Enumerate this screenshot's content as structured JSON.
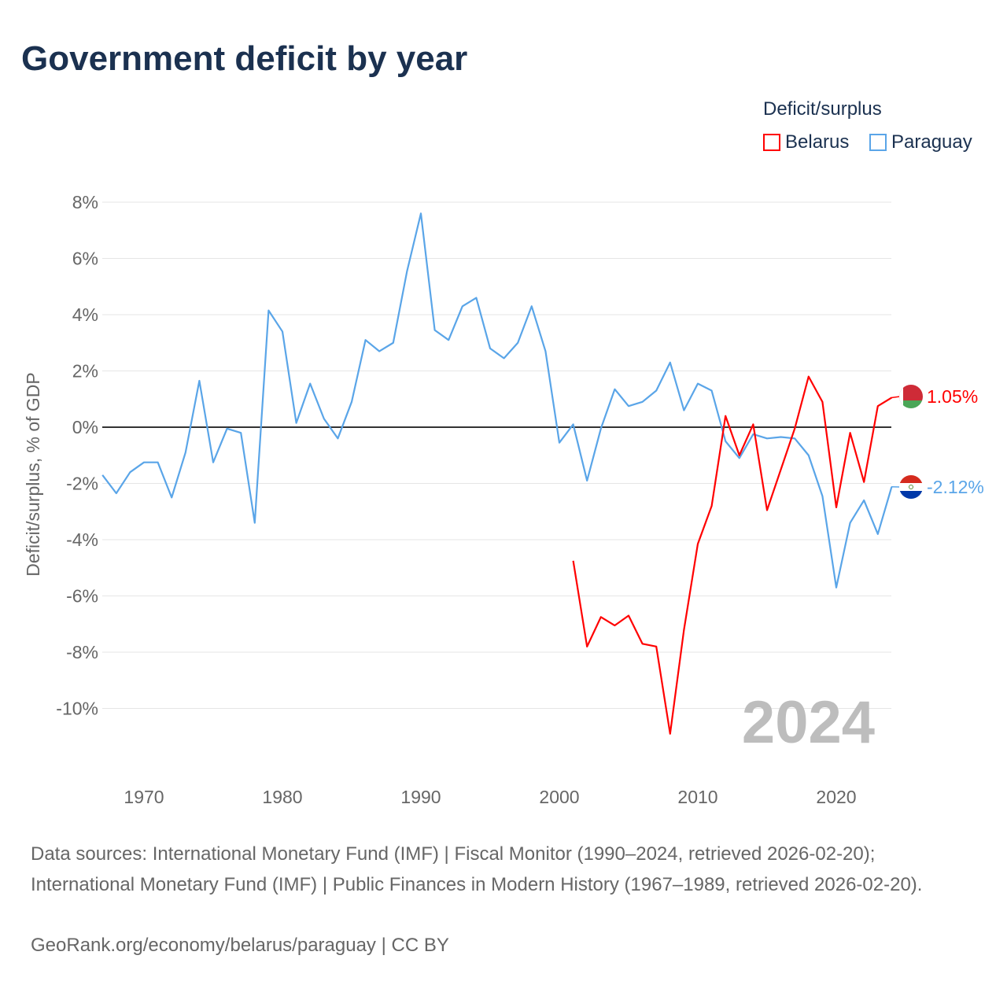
{
  "title": "Government deficit by year",
  "legend": {
    "title": "Deficit/surplus",
    "items": [
      {
        "name": "Belarus",
        "color": "#ff0000"
      },
      {
        "name": "Paraguay",
        "color": "#5aa5e8"
      }
    ]
  },
  "year_watermark": "2024",
  "footer": {
    "sources": "Data sources: International Monetary Fund (IMF) | Fiscal Monitor (1990–2024, retrieved 2026-02-20); International Monetary Fund (IMF) | Public Finances in Modern History (1967–1989, retrieved 2026-02-20).",
    "link": "GeoRank.org/economy/belarus/paraguay | CC BY"
  },
  "chart_data": {
    "type": "line",
    "title": "Government deficit by year",
    "xlabel": "",
    "ylabel": "Deficit/surplus, % of GDP",
    "xlim": [
      1967,
      2024
    ],
    "ylim": [
      -12.2,
      8.5
    ],
    "x_ticks": [
      1970,
      1980,
      1990,
      2000,
      2010,
      2020
    ],
    "x_tick_labels": [
      "1970",
      "1980",
      "1990",
      "2000",
      "2010",
      "2020"
    ],
    "y_ticks": [
      8,
      6,
      4,
      2,
      0,
      -2,
      -4,
      -6,
      -8,
      -10
    ],
    "y_tick_labels": [
      "8%",
      "6%",
      "4%",
      "2%",
      "0%",
      "-2%",
      "-4%",
      "-6%",
      "-8%",
      "-10%"
    ],
    "grid": true,
    "legend_position": "top-right",
    "series": [
      {
        "name": "Belarus",
        "color": "#ff0000",
        "end_label": "1.05%",
        "x": [
          2001,
          2002,
          2003,
          2004,
          2005,
          2006,
          2007,
          2008,
          2009,
          2010,
          2011,
          2012,
          2013,
          2014,
          2015,
          2016,
          2017,
          2018,
          2019,
          2020,
          2021,
          2022,
          2023,
          2024
        ],
        "values": [
          -4.75,
          -7.8,
          -6.75,
          -7.05,
          -6.7,
          -7.7,
          -7.8,
          -10.9,
          -7.2,
          -4.15,
          -2.8,
          0.4,
          -1.0,
          0.1,
          -2.95,
          -1.5,
          -0.05,
          1.8,
          0.9,
          -2.85,
          -0.2,
          -1.95,
          0.75,
          1.05
        ]
      },
      {
        "name": "Paraguay",
        "color": "#5aa5e8",
        "end_label": "-2.12%",
        "x": [
          1967,
          1968,
          1969,
          1970,
          1971,
          1972,
          1973,
          1974,
          1975,
          1976,
          1977,
          1978,
          1979,
          1980,
          1981,
          1982,
          1983,
          1984,
          1985,
          1986,
          1987,
          1988,
          1989,
          1990,
          1991,
          1992,
          1993,
          1994,
          1995,
          1996,
          1997,
          1998,
          1999,
          2000,
          2001,
          2002,
          2003,
          2004,
          2005,
          2006,
          2007,
          2008,
          2009,
          2010,
          2011,
          2012,
          2013,
          2014,
          2015,
          2016,
          2017,
          2018,
          2019,
          2020,
          2021,
          2022,
          2023,
          2024
        ],
        "values": [
          -1.7,
          -2.35,
          -1.6,
          -1.25,
          -1.25,
          -2.5,
          -0.9,
          1.65,
          -1.25,
          -0.05,
          -0.2,
          -3.4,
          4.15,
          3.4,
          0.15,
          1.55,
          0.3,
          -0.4,
          0.9,
          3.1,
          2.7,
          3.0,
          5.55,
          7.6,
          3.45,
          3.1,
          4.3,
          4.6,
          2.8,
          2.45,
          3.0,
          4.3,
          2.7,
          -0.55,
          0.1,
          -1.9,
          -0.05,
          1.35,
          0.75,
          0.9,
          1.3,
          2.3,
          0.6,
          1.55,
          1.3,
          -0.5,
          -1.1,
          -0.25,
          -0.4,
          -0.35,
          -0.4,
          -1.0,
          -2.45,
          -5.7,
          -3.4,
          -2.6,
          -3.8,
          -2.12
        ]
      }
    ]
  }
}
